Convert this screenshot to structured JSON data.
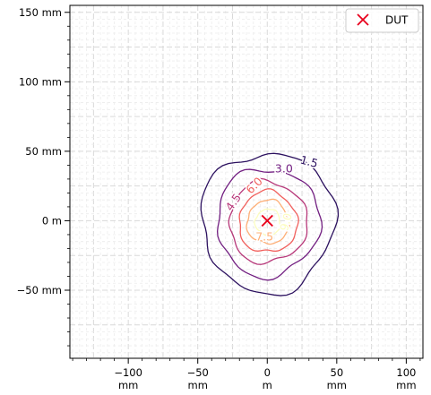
{
  "chart_data": {
    "type": "contour",
    "xlim": [
      -142,
      112
    ],
    "ylim": [
      -99,
      155
    ],
    "aspect": "equal",
    "grid": true,
    "grid_major_step_mm": 25,
    "grid_minor_step_mm": 5,
    "x_ticks": [
      {
        "value": -100,
        "line1": "−100",
        "line2": "mm"
      },
      {
        "value": -50,
        "line1": "−50",
        "line2": "mm"
      },
      {
        "value": 0,
        "line1": "0",
        "line2": "m"
      },
      {
        "value": 50,
        "line1": "50",
        "line2": "mm"
      },
      {
        "value": 100,
        "line1": "100",
        "line2": "mm"
      }
    ],
    "y_ticks": [
      {
        "value": 150,
        "label": "150 mm"
      },
      {
        "value": 100,
        "label": "100 mm"
      },
      {
        "value": 50,
        "label": "50 mm"
      },
      {
        "value": 0,
        "label": "0 m"
      },
      {
        "value": -50,
        "label": "−50 mm"
      }
    ],
    "contour_levels": [
      {
        "level": 1.5,
        "label": "1.5",
        "color": "#2c115f",
        "radius_mm": 48,
        "label_pos": [
          30,
          42
        ],
        "label_rot": 15
      },
      {
        "level": 3.0,
        "label": "3.0",
        "color": "#721f81",
        "radius_mm": 37,
        "label_pos": [
          12,
          37
        ],
        "label_rot": 0
      },
      {
        "level": 4.5,
        "label": "4.5",
        "color": "#b73779",
        "radius_mm": 28,
        "label_pos": [
          -24,
          13
        ],
        "label_rot": -55
      },
      {
        "level": 6.0,
        "label": "6.0",
        "color": "#f1605d",
        "radius_mm": 21,
        "label_pos": [
          -9,
          25
        ],
        "label_rot": -45
      },
      {
        "level": 7.5,
        "label": "7.5",
        "color": "#feaf77",
        "radius_mm": 15,
        "label_pos": [
          -2,
          -12
        ],
        "label_rot": 0
      },
      {
        "level": 9.0,
        "label": "9.0",
        "color": "#fcfdbf",
        "radius_mm": 9,
        "label_pos": [
          14,
          -1
        ],
        "label_rot": -75
      }
    ],
    "marker": {
      "name": "DUT",
      "x": 0,
      "y": 0,
      "symbol": "x",
      "color": "#e8001c"
    },
    "legend": {
      "position": "top-right",
      "entries": [
        {
          "label": "DUT",
          "symbol": "x",
          "color": "#e8001c"
        }
      ]
    }
  }
}
